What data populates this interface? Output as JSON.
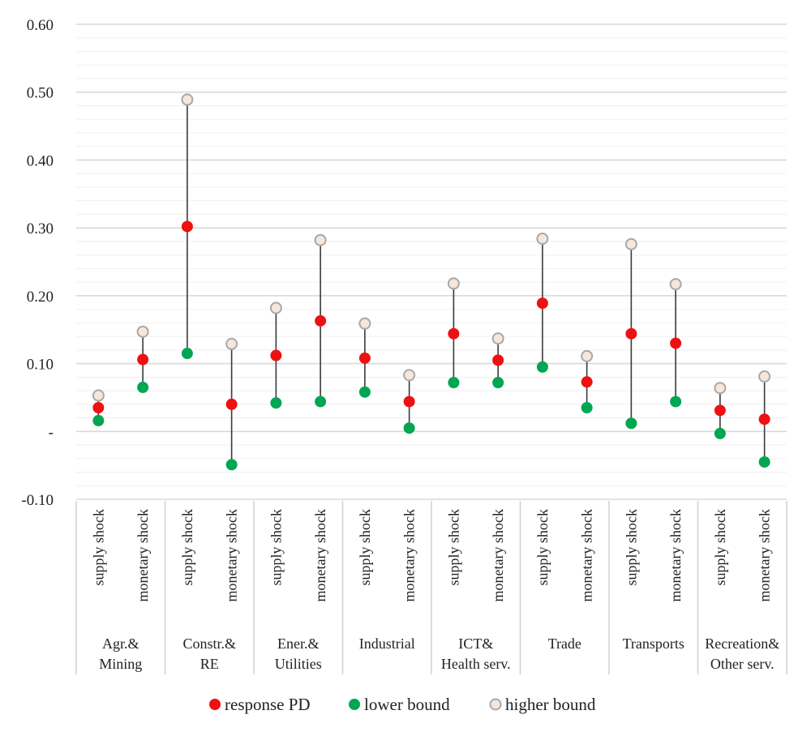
{
  "chart_data": {
    "type": "dot-range",
    "ylim": [
      -0.1,
      0.6
    ],
    "y_ticks": [
      {
        "value": 0.6,
        "label": "0.60"
      },
      {
        "value": 0.5,
        "label": "0.50"
      },
      {
        "value": 0.4,
        "label": "0.40"
      },
      {
        "value": 0.3,
        "label": "0.30"
      },
      {
        "value": 0.2,
        "label": "0.20"
      },
      {
        "value": 0.1,
        "label": "0.10"
      },
      {
        "value": 0.0,
        "label": "-"
      },
      {
        "value": -0.1,
        "label": "-0.10"
      }
    ],
    "minor_grid_step": 0.02,
    "grid": true,
    "legend_position": "bottom",
    "groups": [
      {
        "label_lines": [
          "Agr.&",
          "Mining"
        ]
      },
      {
        "label_lines": [
          "Constr.&",
          "RE"
        ]
      },
      {
        "label_lines": [
          "Ener.&",
          "Utilities"
        ]
      },
      {
        "label_lines": [
          "Industrial"
        ]
      },
      {
        "label_lines": [
          "ICT&",
          "Health serv."
        ]
      },
      {
        "label_lines": [
          "Trade"
        ]
      },
      {
        "label_lines": [
          "Transports"
        ]
      },
      {
        "label_lines": [
          "Recreation&",
          "Other serv."
        ]
      }
    ],
    "categories": [
      {
        "group": 0,
        "label": "supply shock"
      },
      {
        "group": 0,
        "label": "monetary shock"
      },
      {
        "group": 1,
        "label": "supply shock"
      },
      {
        "group": 1,
        "label": "monetary shock"
      },
      {
        "group": 2,
        "label": "supply shock"
      },
      {
        "group": 2,
        "label": "monetary shock"
      },
      {
        "group": 3,
        "label": "supply shock"
      },
      {
        "group": 3,
        "label": "monetary shock"
      },
      {
        "group": 4,
        "label": "supply shock"
      },
      {
        "group": 4,
        "label": "monetary shock"
      },
      {
        "group": 5,
        "label": "supply shock"
      },
      {
        "group": 5,
        "label": "monetary shock"
      },
      {
        "group": 6,
        "label": "supply shock"
      },
      {
        "group": 6,
        "label": "monetary shock"
      },
      {
        "group": 7,
        "label": "supply shock"
      },
      {
        "group": 7,
        "label": "monetary shock"
      }
    ],
    "series": [
      {
        "name": "response PD",
        "color": "#ee1111",
        "values": [
          0.035,
          0.106,
          0.302,
          0.04,
          0.112,
          0.163,
          0.108,
          0.044,
          0.144,
          0.105,
          0.189,
          0.073,
          0.144,
          0.13,
          0.031,
          0.018
        ]
      },
      {
        "name": "lower bound",
        "color": "#00a651",
        "values": [
          0.016,
          0.065,
          0.115,
          -0.049,
          0.042,
          0.044,
          0.058,
          0.005,
          0.072,
          0.072,
          0.095,
          0.035,
          0.012,
          0.044,
          -0.003,
          -0.045
        ]
      },
      {
        "name": "higher bound",
        "color": "#f7e6da",
        "stroke": "#a8a8a8",
        "values": [
          0.053,
          0.147,
          0.489,
          0.129,
          0.182,
          0.282,
          0.159,
          0.083,
          0.218,
          0.137,
          0.284,
          0.111,
          0.276,
          0.217,
          0.064,
          0.081
        ]
      }
    ]
  }
}
